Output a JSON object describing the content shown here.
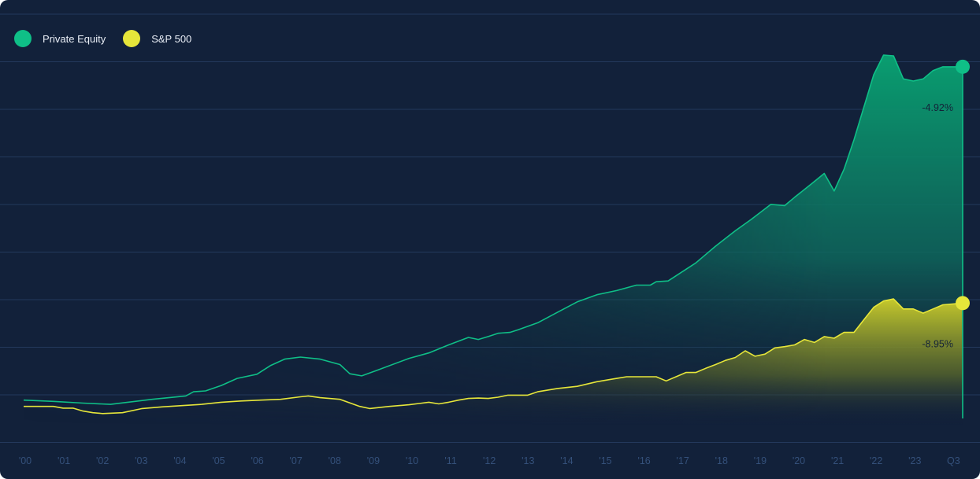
{
  "chart_data": {
    "type": "area",
    "x_tick_labels": [
      "'00",
      "'01",
      "'02",
      "'03",
      "'04",
      "'05",
      "'06",
      "'07",
      "'08",
      "'09",
      "'10",
      "'11",
      "'12",
      "'13",
      "'14",
      "'15",
      "'16",
      "'17",
      "'18",
      "'19",
      "'20",
      "'21",
      "'22",
      "'23",
      "Q3"
    ],
    "xlim": [
      2000,
      2023.75
    ],
    "ylim": [
      -0.45,
      8.5
    ],
    "grid": true,
    "legend_position": "top-left",
    "series": [
      {
        "name": "Private Equity",
        "color": "#0fbf87",
        "end_label": "-4.92%",
        "x": [
          2000,
          2000.75,
          2001.5,
          2002.2,
          2003.25,
          2004.1,
          2004.3,
          2004.6,
          2005.0,
          2005.4,
          2005.9,
          2006.25,
          2006.6,
          2007.0,
          2007.5,
          2008.0,
          2008.25,
          2008.55,
          2008.9,
          2009.75,
          2010.25,
          2010.75,
          2011.25,
          2011.5,
          2011.75,
          2012.0,
          2012.3,
          2012.5,
          2013.0,
          2013.5,
          2014.0,
          2014.5,
          2015.0,
          2015.5,
          2015.85,
          2016.0,
          2016.3,
          2017.0,
          2017.5,
          2018.0,
          2018.4,
          2018.9,
          2019.25,
          2019.5,
          2019.9,
          2020.25,
          2020.5,
          2020.75,
          2021.0,
          2021.25,
          2021.5,
          2021.75,
          2022.0,
          2022.25,
          2022.5,
          2022.75,
          2023.0,
          2023.25,
          2023.75
        ],
        "y": [
          0.1,
          0.07,
          0.03,
          0.0,
          0.12,
          0.2,
          0.3,
          0.32,
          0.45,
          0.62,
          0.72,
          0.93,
          1.08,
          1.13,
          1.08,
          0.95,
          0.73,
          0.68,
          0.8,
          1.1,
          1.23,
          1.42,
          1.6,
          1.55,
          1.62,
          1.7,
          1.72,
          1.78,
          1.95,
          2.2,
          2.45,
          2.62,
          2.72,
          2.85,
          2.85,
          2.93,
          2.95,
          3.38,
          3.78,
          4.15,
          4.42,
          4.78,
          4.75,
          4.95,
          5.25,
          5.52,
          5.1,
          5.62,
          6.32,
          7.1,
          7.88,
          8.35,
          8.33,
          7.78,
          7.73,
          7.78,
          7.98,
          8.07,
          8.07
        ]
      },
      {
        "name": "S&P 500",
        "color": "#e6e63a",
        "end_label": "-8.95%",
        "x": [
          2000,
          2000.75,
          2001.0,
          2001.25,
          2001.5,
          2001.75,
          2002.0,
          2002.5,
          2003.0,
          2003.5,
          2004.0,
          2004.5,
          2005.0,
          2005.5,
          2006.0,
          2006.5,
          2007.0,
          2007.2,
          2007.5,
          2008.0,
          2008.5,
          2008.75,
          2009.25,
          2009.75,
          2010.0,
          2010.25,
          2010.5,
          2010.75,
          2011.0,
          2011.25,
          2011.5,
          2011.75,
          2012.0,
          2012.25,
          2012.75,
          2013.0,
          2013.5,
          2014.0,
          2014.5,
          2015.0,
          2015.25,
          2015.5,
          2016.0,
          2016.25,
          2016.5,
          2016.75,
          2017.0,
          2017.25,
          2017.5,
          2017.75,
          2018.0,
          2018.25,
          2018.5,
          2018.75,
          2019.0,
          2019.25,
          2019.5,
          2019.75,
          2020.0,
          2020.25,
          2020.5,
          2020.75,
          2021.0,
          2021.25,
          2021.5,
          2021.75,
          2022.0,
          2022.25,
          2022.5,
          2022.75,
          2023.0,
          2023.25,
          2023.75
        ],
        "y": [
          -0.05,
          -0.05,
          -0.09,
          -0.09,
          -0.16,
          -0.2,
          -0.22,
          -0.2,
          -0.1,
          -0.06,
          -0.03,
          0.0,
          0.05,
          0.08,
          0.1,
          0.12,
          0.18,
          0.2,
          0.16,
          0.12,
          -0.05,
          -0.1,
          -0.05,
          -0.01,
          0.02,
          0.05,
          0.01,
          0.05,
          0.1,
          0.14,
          0.15,
          0.14,
          0.17,
          0.22,
          0.22,
          0.3,
          0.38,
          0.43,
          0.54,
          0.62,
          0.66,
          0.66,
          0.66,
          0.56,
          0.66,
          0.76,
          0.76,
          0.86,
          0.95,
          1.05,
          1.12,
          1.28,
          1.15,
          1.2,
          1.35,
          1.38,
          1.42,
          1.55,
          1.48,
          1.62,
          1.58,
          1.72,
          1.72,
          2.02,
          2.32,
          2.47,
          2.52,
          2.28,
          2.28,
          2.18,
          2.28,
          2.38,
          2.42
        ]
      }
    ]
  }
}
